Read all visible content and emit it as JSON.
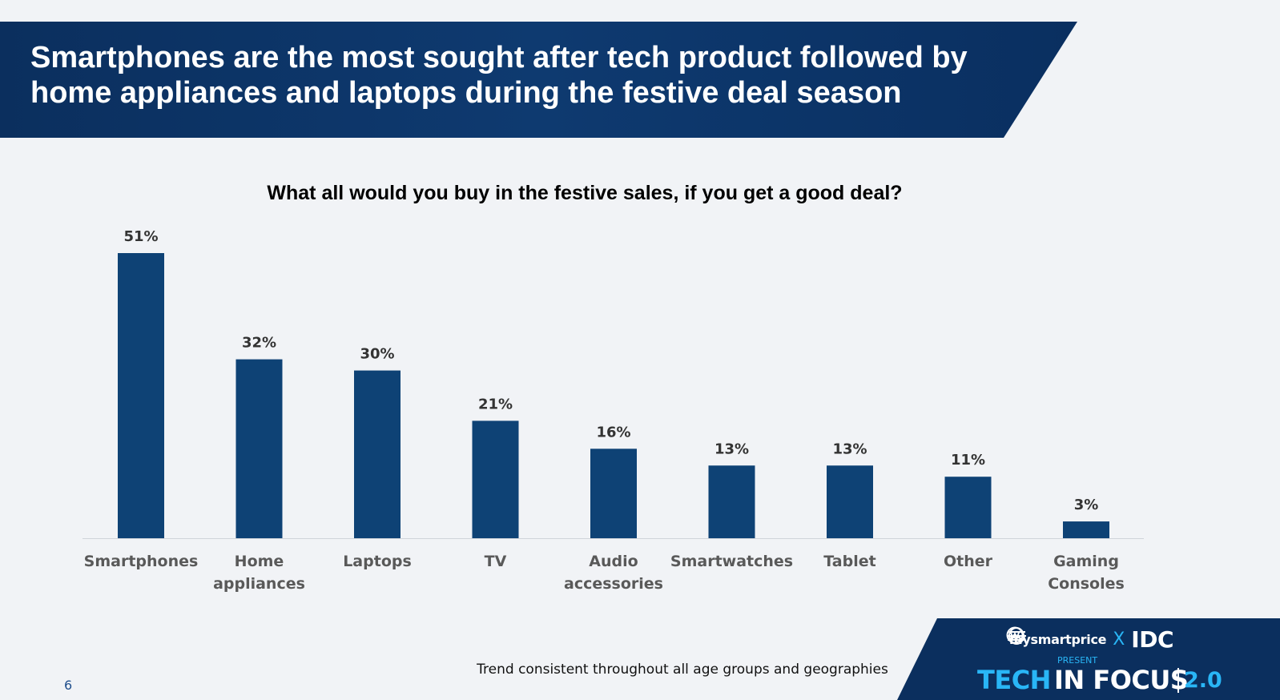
{
  "header": {
    "title": "Smartphones are the most sought after tech product followed by home appliances and laptops during the festive deal season",
    "background_color": "#0b3566"
  },
  "chart_data": {
    "type": "bar",
    "title": "What all would you buy in the festive sales, if you get a good deal?",
    "categories": [
      [
        "Smartphones"
      ],
      [
        "Home",
        "appliances"
      ],
      [
        "Laptops"
      ],
      [
        "TV"
      ],
      [
        "Audio",
        "accessories"
      ],
      [
        "Smartwatches"
      ],
      [
        "Tablet"
      ],
      [
        "Other"
      ],
      [
        "Gaming",
        "Consoles"
      ]
    ],
    "values": [
      51,
      32,
      30,
      21,
      16,
      13,
      13,
      11,
      3
    ],
    "value_labels": [
      "51%",
      "32%",
      "30%",
      "21%",
      "16%",
      "13%",
      "13%",
      "11%",
      "3%"
    ],
    "bar_color": "#0e4275",
    "ylim": [
      0,
      51
    ],
    "grid": false,
    "legend": "none"
  },
  "footnote": "Trend consistent throughout all age groups and geographies",
  "page_number": "6",
  "branding": {
    "partner_1": "mysmartprice",
    "separator": "X",
    "partner_2": "IDC",
    "present": "PRESENT",
    "event_part_1": "TECH",
    "event_part_2": "IN FOCUS",
    "event_version": "2.0",
    "accent_color": "#29b6f6"
  }
}
